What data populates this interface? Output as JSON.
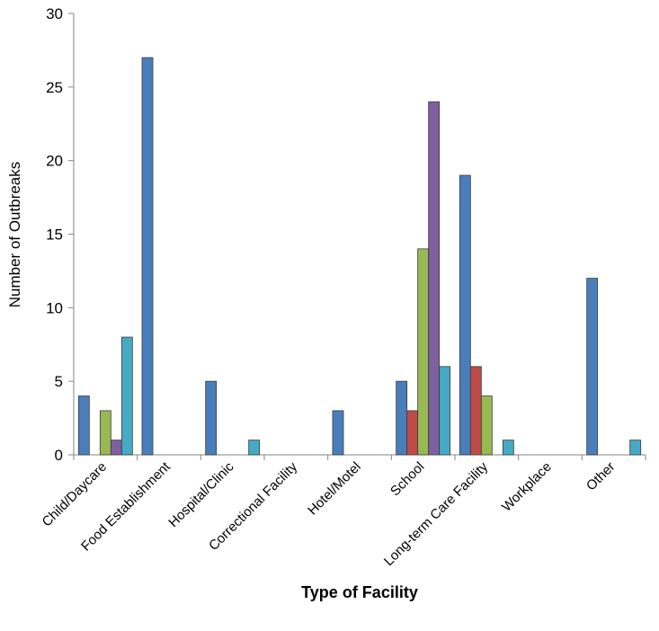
{
  "chart_data": {
    "type": "bar",
    "title": "",
    "xlabel": "Type of Facility",
    "ylabel": "Number of Outbreaks",
    "ylim": [
      0,
      30
    ],
    "yticks": [
      0,
      5,
      10,
      15,
      20,
      25,
      30
    ],
    "grid": false,
    "legend": "none",
    "categories": [
      "Child/Daycare",
      "Food Establishment",
      "Hospital/Clinic",
      "Correctional Facility",
      "Hotel/Motel",
      "School",
      "Long-term Care Facility",
      "Workplace",
      "Other"
    ],
    "series": [
      {
        "color": "#4a7ebb",
        "values": [
          4,
          27,
          5,
          0,
          3,
          5,
          19,
          0,
          12
        ]
      },
      {
        "color": "#be4b48",
        "values": [
          0,
          0,
          0,
          0,
          0,
          3,
          6,
          0,
          0
        ]
      },
      {
        "color": "#98b954",
        "values": [
          3,
          0,
          0,
          0,
          0,
          14,
          4,
          0,
          0
        ]
      },
      {
        "color": "#7d60a0",
        "values": [
          1,
          0,
          0,
          0,
          0,
          24,
          0,
          0,
          0
        ]
      },
      {
        "color": "#46aac4",
        "values": [
          8,
          0,
          1,
          0,
          0,
          6,
          1,
          0,
          1
        ]
      }
    ]
  }
}
